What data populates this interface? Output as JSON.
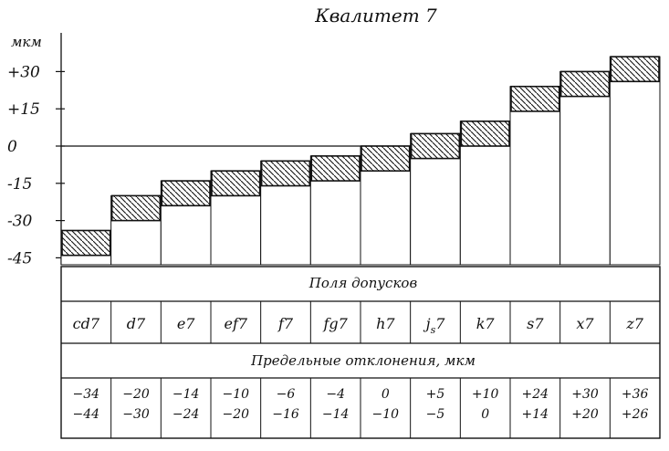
{
  "chart_data": {
    "type": "bar",
    "title": "Квалитет 7",
    "ylabel": "мкм",
    "ylim": [
      -50,
      42
    ],
    "yticks": [
      "+30",
      "+15",
      "0",
      "-15",
      "-30",
      "-45"
    ],
    "ytick_values": [
      30,
      15,
      0,
      -15,
      -30,
      -45
    ],
    "bar_style": "hatched tolerance zones",
    "table_caption": "Поля допусков",
    "deviations_caption": "Предельные отклонения, мкм",
    "categories": [
      "cd7",
      "d7",
      "e7",
      "ef7",
      "f7",
      "fg7",
      "h7",
      "js7",
      "k7",
      "s7",
      "x7",
      "z7"
    ],
    "category_labels": [
      {
        "main": "cd7"
      },
      {
        "main": "d7"
      },
      {
        "main": "e7"
      },
      {
        "main": "ef7"
      },
      {
        "main": "f7"
      },
      {
        "main": "fg7"
      },
      {
        "main": "h7"
      },
      {
        "main": "j",
        "sub": "s",
        "suffix": "7"
      },
      {
        "main": "k7"
      },
      {
        "main": "s7"
      },
      {
        "main": "x7"
      },
      {
        "main": "z7"
      }
    ],
    "upper": [
      -34,
      -20,
      -14,
      -10,
      -6,
      -4,
      0,
      5,
      10,
      24,
      30,
      36
    ],
    "lower": [
      -44,
      -30,
      -24,
      -20,
      -16,
      -14,
      -10,
      -5,
      0,
      14,
      20,
      26
    ],
    "upper_text": [
      "−34",
      "−20",
      "−14",
      "−10",
      "−6",
      "−4",
      "0",
      "+5",
      "+10",
      "+24",
      "+30",
      "+36"
    ],
    "lower_text": [
      "−44",
      "−30",
      "−24",
      "−20",
      "−16",
      "−14",
      "−10",
      "−5",
      "0",
      "+14",
      "+20",
      "+26"
    ]
  }
}
